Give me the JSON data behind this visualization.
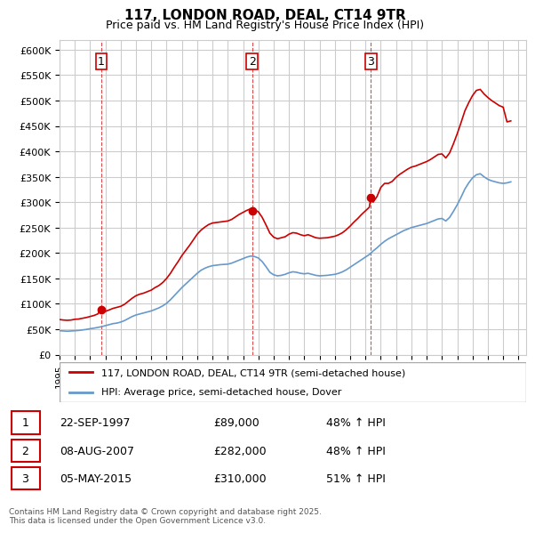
{
  "title": "117, LONDON ROAD, DEAL, CT14 9TR",
  "subtitle": "Price paid vs. HM Land Registry's House Price Index (HPI)",
  "ylabel_ticks": [
    "£0",
    "£50K",
    "£100K",
    "£150K",
    "£200K",
    "£250K",
    "£300K",
    "£350K",
    "£400K",
    "£450K",
    "£500K",
    "£550K",
    "£600K"
  ],
  "ytick_values": [
    0,
    50000,
    100000,
    150000,
    200000,
    250000,
    300000,
    350000,
    400000,
    450000,
    500000,
    550000,
    600000
  ],
  "xlim_start": 1995.0,
  "xlim_end": 2025.5,
  "ylim_min": 0,
  "ylim_max": 620000,
  "purchases": [
    {
      "date_num": 1997.73,
      "price": 89000,
      "label": "1"
    },
    {
      "date_num": 2007.6,
      "price": 282000,
      "label": "2"
    },
    {
      "date_num": 2015.35,
      "price": 310000,
      "label": "3"
    }
  ],
  "purchase_info": [
    {
      "num": "1",
      "date": "22-SEP-1997",
      "price": "£89,000",
      "hpi": "48% ↑ HPI"
    },
    {
      "num": "2",
      "date": "08-AUG-2007",
      "price": "£282,000",
      "hpi": "48% ↑ HPI"
    },
    {
      "num": "3",
      "date": "05-MAY-2015",
      "price": "£310,000",
      "hpi": "51% ↑ HPI"
    }
  ],
  "legend_line1": "117, LONDON ROAD, DEAL, CT14 9TR (semi-detached house)",
  "legend_line2": "HPI: Average price, semi-detached house, Dover",
  "footer": "Contains HM Land Registry data © Crown copyright and database right 2025.\nThis data is licensed under the Open Government Licence v3.0.",
  "line_color_red": "#cc0000",
  "line_color_blue": "#6699cc",
  "vline_color": "#cc0000",
  "grid_color": "#cccccc",
  "bg_color": "#ffffff",
  "hpi_data": {
    "years": [
      1995.0,
      1995.25,
      1995.5,
      1995.75,
      1996.0,
      1996.25,
      1996.5,
      1996.75,
      1997.0,
      1997.25,
      1997.5,
      1997.75,
      1998.0,
      1998.25,
      1998.5,
      1998.75,
      1999.0,
      1999.25,
      1999.5,
      1999.75,
      2000.0,
      2000.25,
      2000.5,
      2000.75,
      2001.0,
      2001.25,
      2001.5,
      2001.75,
      2002.0,
      2002.25,
      2002.5,
      2002.75,
      2003.0,
      2003.25,
      2003.5,
      2003.75,
      2004.0,
      2004.25,
      2004.5,
      2004.75,
      2005.0,
      2005.25,
      2005.5,
      2005.75,
      2006.0,
      2006.25,
      2006.5,
      2006.75,
      2007.0,
      2007.25,
      2007.5,
      2007.75,
      2008.0,
      2008.25,
      2008.5,
      2008.75,
      2009.0,
      2009.25,
      2009.5,
      2009.75,
      2010.0,
      2010.25,
      2010.5,
      2010.75,
      2011.0,
      2011.25,
      2011.5,
      2011.75,
      2012.0,
      2012.25,
      2012.5,
      2012.75,
      2013.0,
      2013.25,
      2013.5,
      2013.75,
      2014.0,
      2014.25,
      2014.5,
      2014.75,
      2015.0,
      2015.25,
      2015.5,
      2015.75,
      2016.0,
      2016.25,
      2016.5,
      2016.75,
      2017.0,
      2017.25,
      2017.5,
      2017.75,
      2018.0,
      2018.25,
      2018.5,
      2018.75,
      2019.0,
      2019.25,
      2019.5,
      2019.75,
      2020.0,
      2020.25,
      2020.5,
      2020.75,
      2021.0,
      2021.25,
      2021.5,
      2021.75,
      2022.0,
      2022.25,
      2022.5,
      2022.75,
      2023.0,
      2023.25,
      2023.5,
      2023.75,
      2024.0,
      2024.25,
      2024.5
    ],
    "values": [
      47000,
      46500,
      46000,
      46500,
      47000,
      47500,
      48500,
      49500,
      51000,
      52000,
      53500,
      55000,
      57000,
      59000,
      61000,
      62000,
      64000,
      67000,
      71000,
      75000,
      78000,
      80000,
      82000,
      84000,
      86000,
      89000,
      92000,
      96000,
      101000,
      108000,
      116000,
      124000,
      132000,
      139000,
      146000,
      153000,
      160000,
      166000,
      170000,
      173000,
      175000,
      176000,
      177000,
      177500,
      178000,
      180000,
      183000,
      186000,
      189000,
      192000,
      194000,
      193000,
      190000,
      183000,
      173000,
      162000,
      157000,
      155000,
      156000,
      158000,
      161000,
      163000,
      162000,
      160000,
      159000,
      160000,
      158000,
      156000,
      155000,
      155500,
      156000,
      157000,
      158000,
      160000,
      163000,
      167000,
      172000,
      177000,
      182000,
      187000,
      192000,
      197000,
      204000,
      210000,
      217000,
      223000,
      228000,
      232000,
      236000,
      240000,
      244000,
      247000,
      250000,
      252000,
      254000,
      256000,
      258000,
      261000,
      264000,
      267000,
      268000,
      263000,
      270000,
      282000,
      295000,
      310000,
      326000,
      338000,
      348000,
      354000,
      356000,
      350000,
      345000,
      342000,
      340000,
      338000,
      337000,
      338000,
      340000
    ]
  },
  "red_data": {
    "years": [
      1995.0,
      1995.25,
      1995.5,
      1995.75,
      1996.0,
      1996.25,
      1996.5,
      1996.75,
      1997.0,
      1997.25,
      1997.5,
      1997.73,
      1997.75,
      1998.0,
      1998.25,
      1998.5,
      1998.75,
      1999.0,
      1999.25,
      1999.5,
      1999.75,
      2000.0,
      2000.25,
      2000.5,
      2000.75,
      2001.0,
      2001.25,
      2001.5,
      2001.75,
      2002.0,
      2002.25,
      2002.5,
      2002.75,
      2003.0,
      2003.25,
      2003.5,
      2003.75,
      2004.0,
      2004.25,
      2004.5,
      2004.75,
      2005.0,
      2005.25,
      2005.5,
      2005.75,
      2006.0,
      2006.25,
      2006.5,
      2006.75,
      2007.0,
      2007.25,
      2007.5,
      2007.6,
      2007.75,
      2008.0,
      2008.25,
      2008.5,
      2008.75,
      2009.0,
      2009.25,
      2009.5,
      2009.75,
      2010.0,
      2010.25,
      2010.5,
      2010.75,
      2011.0,
      2011.25,
      2011.5,
      2011.75,
      2012.0,
      2012.25,
      2012.5,
      2012.75,
      2013.0,
      2013.25,
      2013.5,
      2013.75,
      2014.0,
      2014.25,
      2014.5,
      2014.75,
      2015.0,
      2015.25,
      2015.35,
      2015.5,
      2015.75,
      2016.0,
      2016.25,
      2016.5,
      2016.75,
      2017.0,
      2017.25,
      2017.5,
      2017.75,
      2018.0,
      2018.25,
      2018.5,
      2018.75,
      2019.0,
      2019.25,
      2019.5,
      2019.75,
      2020.0,
      2020.25,
      2020.5,
      2020.75,
      2021.0,
      2021.25,
      2021.5,
      2021.75,
      2022.0,
      2022.25,
      2022.5,
      2022.75,
      2023.0,
      2023.25,
      2023.5,
      2023.75,
      2024.0,
      2024.25,
      2024.5
    ],
    "values": [
      69000,
      68000,
      67500,
      68000,
      69500,
      70000,
      71500,
      73000,
      75000,
      77000,
      80000,
      89000,
      82000,
      85000,
      88000,
      91000,
      93000,
      95000,
      99000,
      105000,
      111000,
      116000,
      119000,
      121000,
      124000,
      127000,
      132000,
      136000,
      142000,
      150000,
      160000,
      172000,
      183000,
      195000,
      205000,
      215000,
      226000,
      237000,
      245000,
      251000,
      256000,
      259000,
      260000,
      261000,
      262000,
      263000,
      266000,
      271000,
      276000,
      280000,
      284000,
      287000,
      282000,
      285000,
      281000,
      270000,
      255000,
      239000,
      231000,
      228000,
      230000,
      232000,
      237000,
      240000,
      239000,
      236000,
      234000,
      236000,
      233000,
      230000,
      229000,
      229500,
      230000,
      231500,
      233000,
      236000,
      240000,
      246000,
      253000,
      261000,
      268000,
      276000,
      283000,
      290000,
      310000,
      300000,
      311000,
      329000,
      337000,
      337000,
      341000,
      349000,
      355000,
      360000,
      365000,
      369000,
      371000,
      374000,
      377000,
      380000,
      384000,
      389000,
      394000,
      395000,
      387000,
      397000,
      415000,
      435000,
      457000,
      480000,
      496000,
      510000,
      520000,
      522000,
      513000,
      506000,
      500000,
      495000,
      490000,
      487000,
      458000,
      460000
    ]
  }
}
